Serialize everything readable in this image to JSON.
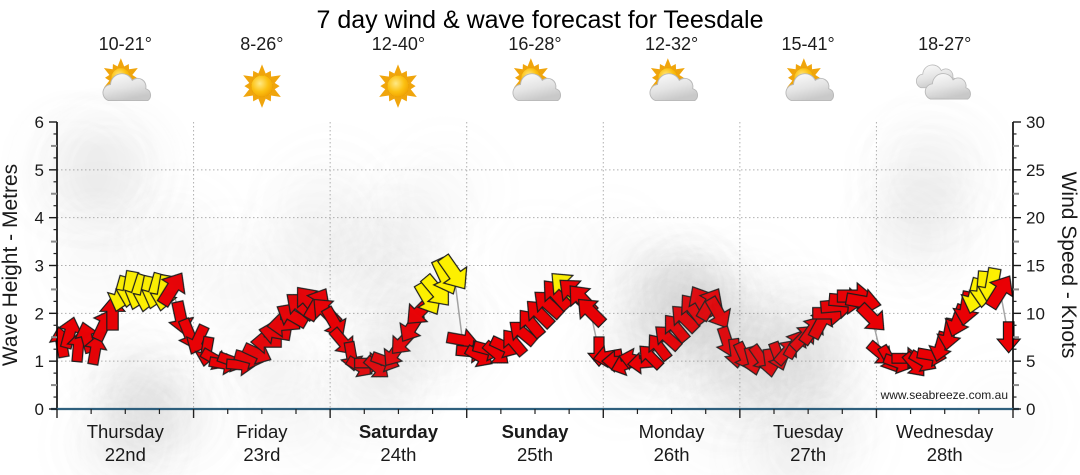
{
  "title": "7 day wind & wave forecast for Teesdale",
  "watermark": "www.seabreeze.com.au",
  "days": [
    {
      "name": "Thursday",
      "date": "22nd",
      "temp": "10-21°",
      "icon": "sun-cloud",
      "bold": false
    },
    {
      "name": "Friday",
      "date": "23rd",
      "temp": "8-26°",
      "icon": "sun",
      "bold": false
    },
    {
      "name": "Saturday",
      "date": "24th",
      "temp": "12-40°",
      "icon": "sun",
      "bold": true
    },
    {
      "name": "Sunday",
      "date": "25th",
      "temp": "16-28°",
      "icon": "sun-cloud",
      "bold": true
    },
    {
      "name": "Monday",
      "date": "26th",
      "temp": "12-32°",
      "icon": "sun-cloud",
      "bold": false
    },
    {
      "name": "Tuesday",
      "date": "27th",
      "temp": "15-41°",
      "icon": "sun-cloud",
      "bold": false
    },
    {
      "name": "Wednesday",
      "date": "28th",
      "temp": "18-27°",
      "icon": "clouds",
      "bold": false
    }
  ],
  "axes": {
    "left_title": "Wave Height - Metres",
    "right_title": "Wind Speed - Knots",
    "wave_ticks": [
      0,
      1,
      2,
      3,
      4,
      5,
      6
    ],
    "wind_ticks": [
      0,
      5,
      10,
      15,
      20,
      25,
      30
    ]
  },
  "colors": {
    "arrow_red": "#ea0004",
    "arrow_yellow": "#fdf000",
    "arrow_outline": "#1a1a1a",
    "axis_bottom": "#2e5f7d",
    "axis_side": "#000000",
    "grid": "#b0b0b0",
    "connector": "#a6a6a6",
    "day_label": "#3d3d3d",
    "day_label_weekend": "#111111",
    "date_label": "#ababab"
  },
  "chart_data": {
    "type": "wind-arrow-time-series",
    "title": "7 day wind & wave forecast for Teesdale",
    "sample_interval_hours": 1.5,
    "samples_per_day": 16,
    "wind_speed_axis": {
      "label": "Wind Speed - Knots",
      "min": 0,
      "max": 30,
      "grid_step": 5
    },
    "wave_height_axis": {
      "label": "Wave Height - Metres",
      "min": 0,
      "max": 6,
      "grid_step": 1
    },
    "x_axis_days": [
      "Thursday 22nd",
      "Friday 23rd",
      "Saturday 24th",
      "Sunday 25th",
      "Monday 26th",
      "Tuesday 27th",
      "Wednesday 28th"
    ],
    "arrow_semantics": "arrow rotation = wind direction (0 = pointing up), vertical position = wind speed in knots, yellow = stronger wind band",
    "days": [
      {
        "name": "Thursday",
        "knots": [
          7.0,
          8.0,
          6.5,
          7.5,
          6.2,
          8.8,
          10.0,
          12.0,
          12.5,
          12.2,
          12.0,
          12.3,
          12.1,
          12.6,
          9.5,
          7.8
        ],
        "dir_deg": [
          -10,
          15,
          5,
          -15,
          10,
          25,
          0,
          196,
          190,
          198,
          192,
          196,
          190,
          32,
          168,
          158
        ],
        "yellow": [
          7,
          8,
          9,
          10,
          11,
          12
        ]
      },
      {
        "name": "Friday",
        "knots": [
          7.2,
          6.0,
          5.2,
          4.7,
          5.0,
          4.6,
          5.3,
          5.8,
          7.0,
          8.0,
          8.8,
          9.8,
          10.8,
          11.3,
          11.0,
          10.2
        ],
        "dir_deg": [
          205,
          190,
          120,
          100,
          110,
          95,
          105,
          115,
          270,
          280,
          265,
          300,
          310,
          320,
          30,
          315
        ],
        "yellow": []
      },
      {
        "name": "Saturday",
        "knots": [
          9.0,
          7.0,
          5.5,
          4.4,
          4.8,
          4.3,
          5.0,
          5.8,
          7.0,
          8.5,
          10.2,
          11.5,
          12.3,
          13.8,
          14.2,
          7.2
        ],
        "dir_deg": [
          150,
          140,
          170,
          120,
          90,
          130,
          110,
          215,
          222,
          212,
          225,
          150,
          140,
          155,
          145,
          100
        ],
        "yellow": [
          11,
          12,
          13,
          14
        ]
      },
      {
        "name": "Sunday",
        "knots": [
          6.0,
          5.5,
          6.2,
          5.8,
          6.5,
          7.0,
          8.0,
          9.0,
          10.0,
          11.0,
          12.0,
          12.8,
          12.2,
          11.5,
          10.2,
          6.0
        ],
        "dir_deg": [
          95,
          120,
          105,
          130,
          115,
          320,
          310,
          320,
          315,
          312,
          318,
          315,
          312,
          318,
          315,
          180
        ],
        "yellow": [
          11
        ]
      },
      {
        "name": "Monday",
        "knots": [
          5.5,
          5.0,
          4.6,
          5.2,
          4.8,
          5.5,
          6.5,
          7.5,
          8.5,
          9.5,
          10.5,
          11.2,
          11.0,
          10.0,
          7.0,
          5.8
        ],
        "dir_deg": [
          260,
          270,
          250,
          282,
          265,
          315,
          322,
          312,
          320,
          315,
          322,
          330,
          30,
          150,
          162,
          172
        ],
        "yellow": []
      },
      {
        "name": "Tuesday",
        "knots": [
          5.5,
          5.0,
          5.3,
          4.8,
          5.5,
          6.0,
          6.8,
          7.5,
          8.3,
          9.0,
          10.0,
          10.8,
          11.3,
          11.8,
          11.2,
          9.5
        ],
        "dir_deg": [
          155,
          165,
          145,
          172,
          160,
          40,
          30,
          45,
          35,
          28,
          90,
          85,
          95,
          90,
          100,
          135
        ],
        "yellow": []
      },
      {
        "name": "Wednesday",
        "knots": [
          5.8,
          5.2,
          4.8,
          5.3,
          4.6,
          5.0,
          5.6,
          6.5,
          7.8,
          9.2,
          10.5,
          11.8,
          12.5,
          12.8,
          12.3,
          7.5
        ],
        "dir_deg": [
          130,
          150,
          110,
          90,
          140,
          120,
          100,
          195,
          190,
          200,
          190,
          195,
          185,
          190,
          32,
          180
        ],
        "yellow": [
          11,
          12,
          13
        ]
      }
    ]
  }
}
